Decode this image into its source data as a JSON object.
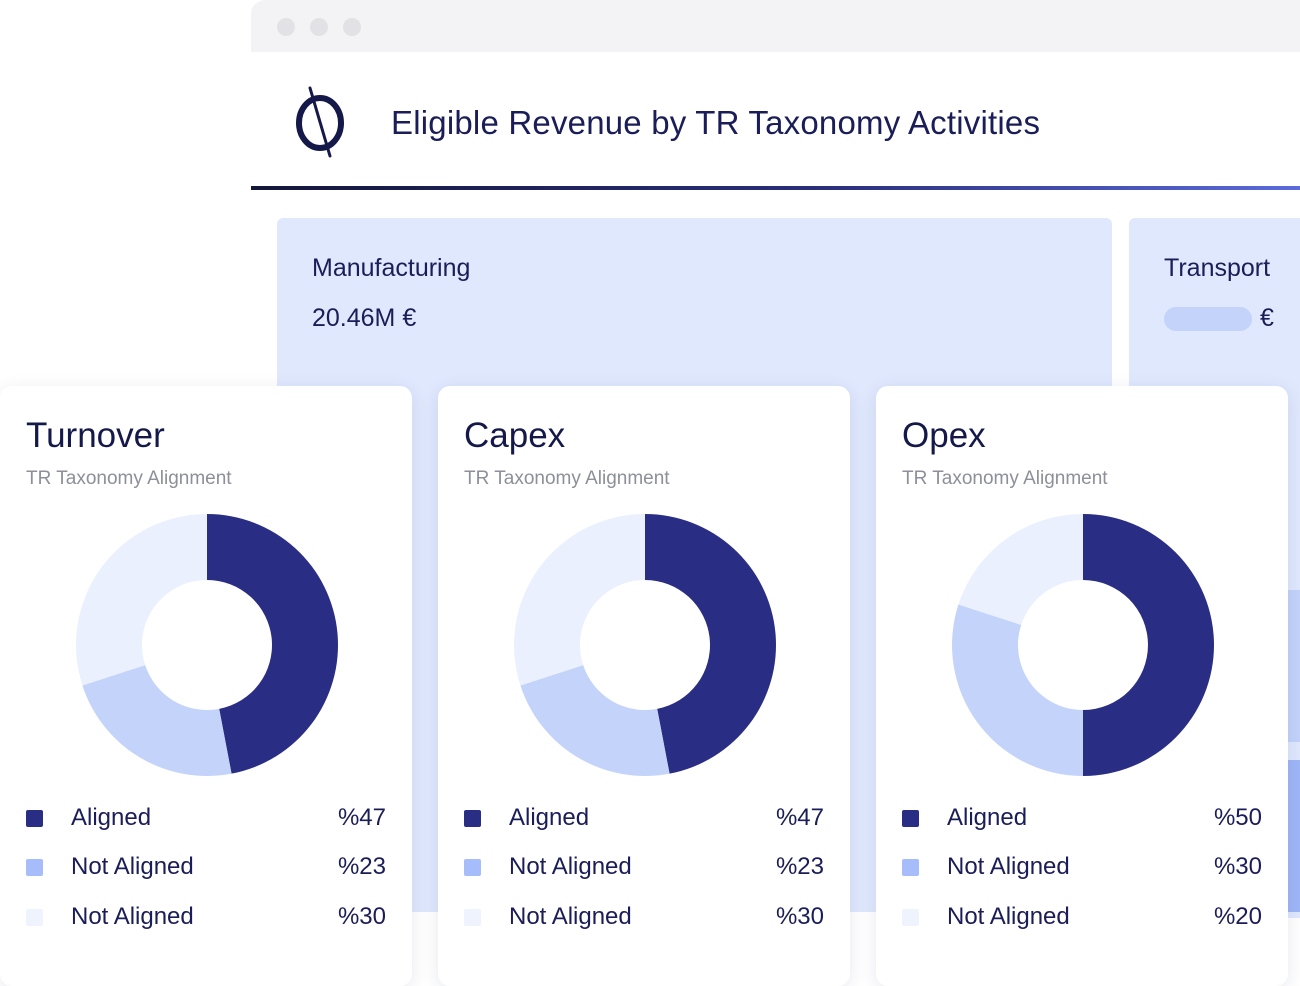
{
  "header": {
    "title": "Eligible Revenue by TR Taxonomy Activities",
    "logo_icon": "circle-slash-logo-icon"
  },
  "sectors": [
    {
      "name": "Manufacturing",
      "value": "20.46M €"
    },
    {
      "name": "Transport",
      "currency": "€"
    }
  ],
  "colors": {
    "aligned": "#2a2d84",
    "not_aligned": "#c3d3fa",
    "not_aligned_light": "#eaf0fd",
    "swatch_not_aligned": "#a7bcfa",
    "swatch_not_aligned_light": "#eef3fe"
  },
  "chart_data": [
    {
      "type": "pie",
      "variant": "donut",
      "title": "Turnover",
      "subtitle": "TR Taxonomy Alignment",
      "categories": [
        "Aligned",
        "Not Aligned",
        "Not Aligned"
      ],
      "values": [
        47,
        23,
        30
      ],
      "value_labels": [
        "%47",
        "%23",
        "%30"
      ]
    },
    {
      "type": "pie",
      "variant": "donut",
      "title": "Capex",
      "subtitle": "TR Taxonomy Alignment",
      "categories": [
        "Aligned",
        "Not Aligned",
        "Not Aligned"
      ],
      "values": [
        47,
        23,
        30
      ],
      "value_labels": [
        "%47",
        "%23",
        "%30"
      ]
    },
    {
      "type": "pie",
      "variant": "donut",
      "title": "Opex",
      "subtitle": "TR Taxonomy Alignment",
      "categories": [
        "Aligned",
        "Not Aligned",
        "Not Aligned"
      ],
      "values": [
        50,
        30,
        20
      ],
      "value_labels": [
        "%50",
        "%30",
        "%20"
      ]
    }
  ]
}
